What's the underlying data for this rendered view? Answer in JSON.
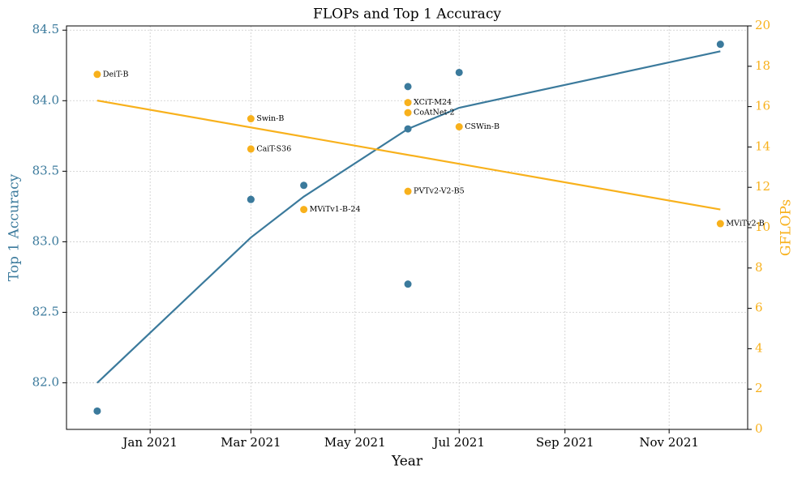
{
  "chart_data": {
    "type": "dual_axis_scatter",
    "title": "FLOPs and Top 1 Accuracy",
    "x_label": "Year",
    "y_label": "Top 1 Accuracy",
    "y2_label": "GFLOPs",
    "y_color": "#3b7a9c",
    "y2_color": "#f8b11c",
    "models": [
      "DeiT-B",
      "Swin-B",
      "CaiT-S36",
      "MViTv1-B-24",
      "XCiT-M24",
      "CoAtNet-2",
      "PVTv2-V2-B5",
      "CSWin-B",
      "MViTv2-B"
    ],
    "x": [
      "2020-12",
      "2021-03",
      "2021-03",
      "2021-04",
      "2021-06",
      "2021-06",
      "2021-06",
      "2021-07",
      "2021-12"
    ],
    "series": [
      {
        "name": "Top 1 Accuracy",
        "color": "#3b7a9c",
        "values": [
          81.8,
          83.3,
          83.3,
          83.4,
          82.7,
          84.1,
          83.8,
          84.2,
          84.4
        ]
      },
      {
        "name": "GFLOPs",
        "color": "#f8b11c",
        "axis": "y2",
        "values": [
          17.6,
          15.4,
          13.9,
          10.9,
          16.2,
          15.7,
          11.8,
          15.0,
          10.2
        ]
      }
    ],
    "trend": [
      {
        "color": "#3b7a9c",
        "x": [
          "2020-12",
          "2021-03",
          "2021-04",
          "2021-06",
          "2021-07",
          "2021-12"
        ],
        "values": [
          82.0,
          83.03,
          83.32,
          83.8,
          83.95,
          84.35
        ]
      },
      {
        "color": "#f8b11c",
        "axis": "y2",
        "x": [
          "2020-12",
          "2021-12"
        ],
        "values": [
          16.3,
          10.9
        ]
      }
    ],
    "xlim": [
      "2020-11-13",
      "2021-12-17"
    ],
    "xticks": [
      {
        "value": "2021-01",
        "label": "Jan 2021"
      },
      {
        "value": "2021-03",
        "label": "Mar 2021"
      },
      {
        "value": "2021-05",
        "label": "May 2021"
      },
      {
        "value": "2021-07",
        "label": "Jul 2021"
      },
      {
        "value": "2021-09",
        "label": "Sep 2021"
      },
      {
        "value": "2021-11",
        "label": "Nov 2021"
      }
    ],
    "ylim": [
      81.67,
      84.53
    ],
    "yticks": [
      {
        "value": 82,
        "label": "82.0"
      },
      82.5,
      {
        "value": 83,
        "label": "83.0"
      },
      83.5,
      {
        "value": 84,
        "label": "84.0"
      },
      84.5
    ],
    "y2lim": [
      0,
      20
    ],
    "y2ticks": [
      0,
      2,
      4,
      6,
      8,
      10,
      12,
      14,
      16,
      18,
      20
    ],
    "grid": true
  }
}
